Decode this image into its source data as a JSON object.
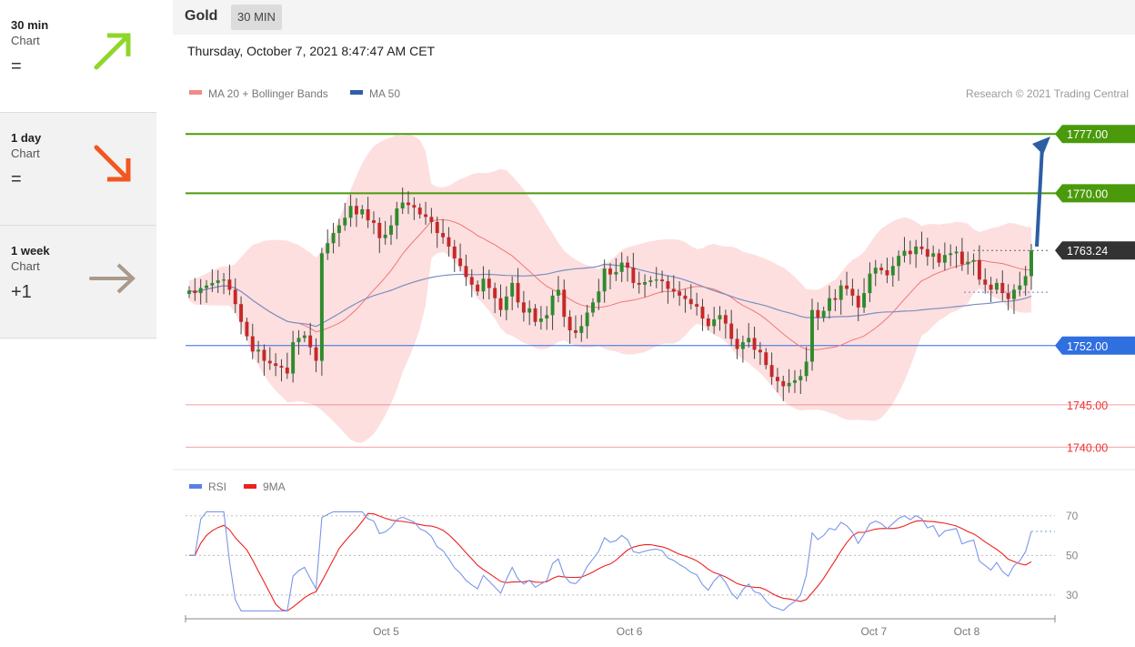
{
  "sidebar": {
    "items": [
      {
        "title": "30 min",
        "subtitle": "Chart",
        "sign": "=",
        "arrow": "up-right",
        "color": "#8fd62a"
      },
      {
        "title": "1 day",
        "subtitle": "Chart",
        "sign": "=",
        "arrow": "down-right",
        "color": "#f2571f"
      },
      {
        "title": "1 week",
        "subtitle": "Chart",
        "sign": "+1",
        "arrow": "right",
        "color": "#a89a8c"
      }
    ]
  },
  "header": {
    "instrument": "Gold",
    "timeframe": "30 MIN"
  },
  "datetime": "Thursday, October 7, 2021 8:47:47 AM CET",
  "chart_data": [
    {
      "type": "candlestick",
      "legend": [
        {
          "label": "MA 20 + Bollinger Bands",
          "color": "#f08a8a"
        },
        {
          "label": "MA 50",
          "color": "#2f5fa8"
        }
      ],
      "credit": "Research © 2021 Trading Central",
      "ylim": [
        1738,
        1781
      ],
      "x_labels": [
        {
          "label": "Oct 5",
          "pos": 0.233
        },
        {
          "label": "Oct 6",
          "pos": 0.516
        },
        {
          "label": "Oct 7",
          "pos": 0.8
        },
        {
          "label": "Oct 8",
          "pos": 0.908
        }
      ],
      "levels": [
        {
          "value": 1777.0,
          "label": "1777.00",
          "kind": "resistance",
          "color": "#4a9a0c",
          "badge": true
        },
        {
          "value": 1770.0,
          "label": "1770.00",
          "kind": "resistance",
          "color": "#4a9a0c",
          "badge": true
        },
        {
          "value": 1763.24,
          "label": "1763.24",
          "kind": "last",
          "color": "#333333",
          "badge": true
        },
        {
          "value": 1752.0,
          "label": "1752.00",
          "kind": "pivot",
          "color": "#2f6fe0",
          "badge": true
        },
        {
          "value": 1745.0,
          "label": "1745.00",
          "kind": "support",
          "color": "#ee3333",
          "badge": false
        },
        {
          "value": 1740.0,
          "label": "1740.00",
          "kind": "support",
          "color": "#ee3333",
          "badge": false
        }
      ],
      "closes": [
        1758.5,
        1758.2,
        1758.8,
        1759.1,
        1759.4,
        1759.7,
        1759.8,
        1758.6,
        1756.9,
        1754.8,
        1753.1,
        1751.3,
        1751.5,
        1750.2,
        1749.9,
        1749.6,
        1749.4,
        1748.7,
        1752.4,
        1752.9,
        1753.2,
        1751.8,
        1750.2,
        1762.9,
        1764.1,
        1765.3,
        1766.2,
        1767.1,
        1768.5,
        1767.5,
        1768.1,
        1766.8,
        1766.5,
        1764.7,
        1765.1,
        1766.2,
        1768.2,
        1768.9,
        1768.6,
        1768.3,
        1767.5,
        1767.2,
        1766.6,
        1765.3,
        1764.8,
        1763.7,
        1762.3,
        1761.4,
        1760.1,
        1759.2,
        1758.4,
        1759.9,
        1758.8,
        1757.6,
        1756.2,
        1757.8,
        1759.4,
        1757.1,
        1755.9,
        1756.4,
        1754.8,
        1755.2,
        1755.6,
        1757.9,
        1758.6,
        1755.4,
        1753.8,
        1753.5,
        1754.3,
        1755.9,
        1757.1,
        1758.4,
        1761.1,
        1760.4,
        1760.7,
        1761.8,
        1761.2,
        1759.4,
        1759.2,
        1759.5,
        1759.7,
        1759.8,
        1759.6,
        1758.7,
        1758.4,
        1757.9,
        1757.5,
        1756.9,
        1756.6,
        1755.2,
        1754.3,
        1755.1,
        1755.6,
        1754.6,
        1752.8,
        1751.6,
        1752.4,
        1752.9,
        1751.5,
        1751.2,
        1749.7,
        1748.3,
        1747.8,
        1747.2,
        1747.6,
        1747.9,
        1748.4,
        1750.1,
        1756.2,
        1755.3,
        1756.1,
        1757.6,
        1757.4,
        1759.1,
        1758.7,
        1757.9,
        1756.5,
        1758.2,
        1760.5,
        1761.2,
        1760.9,
        1760.3,
        1761.4,
        1762.6,
        1763.2,
        1762.8,
        1763.7,
        1763.4,
        1762.5,
        1762.9,
        1761.8,
        1762.7,
        1762.9,
        1763.1,
        1761.6,
        1761.9,
        1762.1,
        1759.8,
        1759.2,
        1758.6,
        1759.4,
        1758.2,
        1757.5,
        1758.6,
        1759.1,
        1760.2,
        1763.24
      ],
      "rsi": {
        "legend": [
          {
            "label": "RSI",
            "color": "#5b80e6"
          },
          {
            "label": "9MA",
            "color": "#ee2020"
          }
        ],
        "levels": [
          70,
          50,
          30
        ],
        "ylim": [
          18,
          80
        ]
      }
    }
  ]
}
